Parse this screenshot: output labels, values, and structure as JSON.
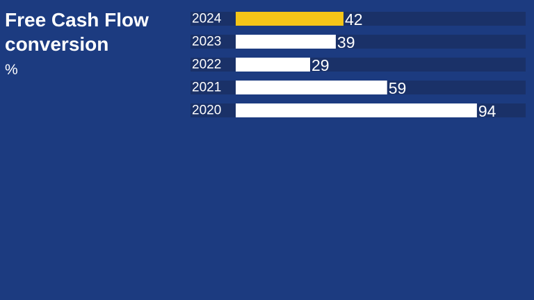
{
  "chart_data": {
    "type": "bar",
    "orientation": "horizontal",
    "title": "Free Cash Flow conversion",
    "unit": "%",
    "categories": [
      "2024",
      "2023",
      "2022",
      "2021",
      "2020"
    ],
    "values": [
      42,
      39,
      29,
      59,
      94
    ],
    "xlim": [
      0,
      113
    ],
    "grid": false,
    "legend": "none",
    "colors": {
      "background": "#1c3b80",
      "track": "#1a3168",
      "bar": "#ffffff",
      "highlight_bar": "#f5c518",
      "text": "#ffffff"
    },
    "highlight_category": "2024"
  }
}
